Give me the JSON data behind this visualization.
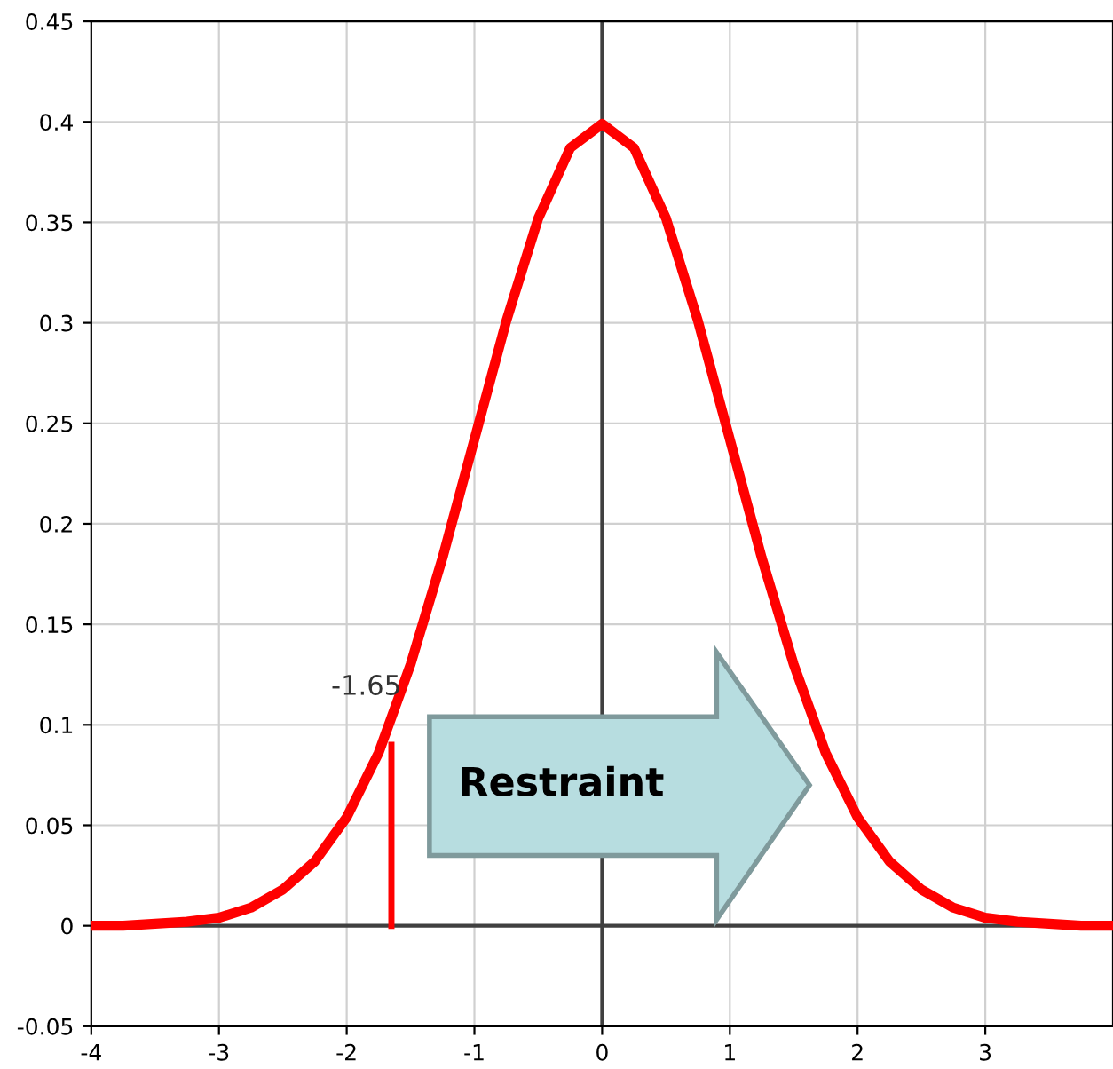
{
  "chart_data": {
    "type": "line",
    "x": [
      -4,
      -3.75,
      -3.5,
      -3.25,
      -3,
      -2.75,
      -2.5,
      -2.25,
      -2,
      -1.75,
      -1.5,
      -1.25,
      -1,
      -0.75,
      -0.5,
      -0.25,
      0,
      0.25,
      0.5,
      0.75,
      1,
      1.25,
      1.5,
      1.75,
      2,
      2.25,
      2.5,
      2.75,
      3,
      3.25,
      3.5,
      3.75,
      4
    ],
    "series": [
      {
        "color": "#ff0000",
        "values": [
          0.0,
          0.0,
          0.001,
          0.002,
          0.004,
          0.009,
          0.018,
          0.032,
          0.054,
          0.086,
          0.13,
          0.183,
          0.242,
          0.301,
          0.352,
          0.387,
          0.399,
          0.387,
          0.352,
          0.301,
          0.242,
          0.183,
          0.13,
          0.086,
          0.054,
          0.032,
          0.018,
          0.009,
          0.004,
          0.002,
          0.001,
          0.0,
          0.0
        ]
      },
      {
        "color": "#ff0000",
        "x": [
          -1.65,
          -1.65
        ],
        "values": [
          0,
          0.09
        ]
      }
    ],
    "annotations": [
      {
        "text": "-1.65",
        "x": -1.65,
        "y": 0.09
      },
      "Restraint"
    ],
    "xlim": [
      -4,
      4
    ],
    "ylim": [
      -0.05,
      0.45
    ],
    "xticks": [
      -4,
      -3,
      -2,
      -1,
      0,
      1,
      2,
      3
    ],
    "yticks": [
      -0.05,
      0,
      0.05,
      0.1,
      0.15,
      0.2,
      0.25,
      0.3,
      0.35,
      0.4,
      0.45
    ],
    "grid": true,
    "legend": false,
    "marker": "none",
    "line_style": "solid"
  }
}
